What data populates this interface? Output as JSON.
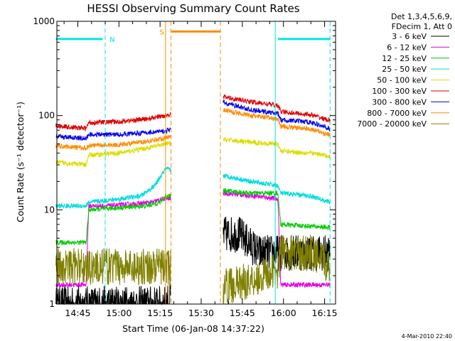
{
  "chart_data": {
    "type": "line",
    "title": "HESSI Observing Summary Count Rates",
    "xlabel": "Start Time (06-Jan-08 14:37:22)",
    "ylabel": "Count Rate (s⁻¹ detector⁻¹)",
    "yscale": "log",
    "ylim": [
      1,
      1000
    ],
    "xlim": [
      "14:37:22",
      "16:19:00"
    ],
    "x_ticks": [
      "14:45",
      "15:00",
      "15:15",
      "15:30",
      "15:45",
      "16:00",
      "16:15"
    ],
    "y_ticks": [
      "1",
      "10",
      "100",
      "1000"
    ],
    "legend_header": [
      "Det 1,3,4,5,6,9,",
      "FDecim 1, Att 0"
    ],
    "legend_position": "top-right, outside plot",
    "footer_date": "4-Mar-2010 22:40",
    "gaps": [
      [
        "15:19",
        "15:38"
      ]
    ],
    "markers": [
      {
        "label": "N",
        "color": "#00e5e5",
        "type": "night",
        "segments": [
          [
            "14:37",
            "14:54"
          ],
          [
            "15:58",
            "16:17"
          ]
        ],
        "boundaries": [
          "14:55",
          "15:57",
          "16:17"
        ],
        "level": 650
      },
      {
        "label": "S",
        "color": "#ff8c00",
        "type": "SAA",
        "segments": [
          [
            "15:19",
            "15:37"
          ]
        ],
        "boundaries": [
          "15:17",
          "15:19",
          "15:37"
        ],
        "level": 780
      }
    ],
    "series": [
      {
        "name": "3 - 6 keV",
        "color": "#000000",
        "points": [
          [
            "14:37",
            1.0
          ],
          [
            "15:17",
            1.0
          ],
          [
            "15:38",
            5.5
          ],
          [
            "15:44",
            5.5
          ],
          [
            "15:51",
            3.5
          ],
          [
            "15:58",
            3.5
          ],
          [
            "16:17",
            3.5
          ]
        ]
      },
      {
        "name": "6 - 12 keV",
        "color": "#e000e0",
        "points": [
          [
            "14:37",
            1.6
          ],
          [
            "14:45",
            1.6
          ],
          [
            "14:48",
            1.6
          ],
          [
            "14:49",
            11
          ],
          [
            "14:55",
            11
          ],
          [
            "15:05",
            11.5
          ],
          [
            "15:12",
            12
          ],
          [
            "15:16",
            13
          ],
          [
            "15:17",
            13
          ],
          [
            "15:38",
            15
          ],
          [
            "15:50",
            14
          ],
          [
            "15:58",
            13
          ],
          [
            "15:59",
            1.6
          ],
          [
            "16:17",
            1.6
          ]
        ]
      },
      {
        "name": "12 - 25 keV",
        "color": "#00cc00",
        "points": [
          [
            "14:37",
            4.5
          ],
          [
            "14:48",
            4.5
          ],
          [
            "14:49",
            10
          ],
          [
            "15:00",
            10.5
          ],
          [
            "15:10",
            11
          ],
          [
            "15:15",
            12
          ],
          [
            "15:17",
            14
          ],
          [
            "15:38",
            16
          ],
          [
            "15:48",
            15
          ],
          [
            "15:58",
            15
          ],
          [
            "15:59",
            7
          ],
          [
            "16:17",
            6.5
          ]
        ]
      },
      {
        "name": "25 - 50 keV",
        "color": "#00dddd",
        "points": [
          [
            "14:37",
            11
          ],
          [
            "14:48",
            11
          ],
          [
            "14:49",
            12
          ],
          [
            "15:00",
            13
          ],
          [
            "15:08",
            14
          ],
          [
            "15:13",
            18
          ],
          [
            "15:17",
            27
          ],
          [
            "15:38",
            23
          ],
          [
            "15:48",
            20
          ],
          [
            "15:58",
            18
          ],
          [
            "15:59",
            15
          ],
          [
            "16:10",
            14
          ],
          [
            "16:17",
            12
          ]
        ]
      },
      {
        "name": "50 - 100 keV",
        "color": "#dddd00",
        "points": [
          [
            "14:37",
            32
          ],
          [
            "14:48",
            30
          ],
          [
            "14:49",
            38
          ],
          [
            "15:00",
            40
          ],
          [
            "15:10",
            45
          ],
          [
            "15:17",
            50
          ],
          [
            "15:38",
            56
          ],
          [
            "15:48",
            52
          ],
          [
            "15:58",
            50
          ],
          [
            "15:59",
            42
          ],
          [
            "16:10",
            40
          ],
          [
            "16:17",
            37
          ]
        ]
      },
      {
        "name": "100 - 300 keV",
        "color": "#e00000",
        "points": [
          [
            "14:37",
            78
          ],
          [
            "14:48",
            73
          ],
          [
            "14:49",
            84
          ],
          [
            "15:00",
            86
          ],
          [
            "15:10",
            92
          ],
          [
            "15:17",
            100
          ],
          [
            "15:38",
            158
          ],
          [
            "15:48",
            140
          ],
          [
            "15:58",
            128
          ],
          [
            "15:59",
            110
          ],
          [
            "16:10",
            102
          ],
          [
            "16:17",
            88
          ]
        ]
      },
      {
        "name": "300 - 800 keV",
        "color": "#0000ee",
        "points": [
          [
            "14:37",
            60
          ],
          [
            "14:48",
            57
          ],
          [
            "14:49",
            63
          ],
          [
            "15:00",
            63
          ],
          [
            "15:10",
            66
          ],
          [
            "15:17",
            68
          ],
          [
            "15:38",
            138
          ],
          [
            "15:48",
            115
          ],
          [
            "15:58",
            105
          ],
          [
            "15:59",
            90
          ],
          [
            "16:10",
            85
          ],
          [
            "16:17",
            72
          ]
        ]
      },
      {
        "name": "800 - 7000 keV",
        "color": "#ff8c00",
        "points": [
          [
            "14:37",
            48
          ],
          [
            "14:48",
            45
          ],
          [
            "14:49",
            48
          ],
          [
            "15:00",
            49
          ],
          [
            "15:10",
            53
          ],
          [
            "15:17",
            58
          ],
          [
            "15:38",
            115
          ],
          [
            "15:48",
            100
          ],
          [
            "15:58",
            92
          ],
          [
            "15:59",
            77
          ],
          [
            "16:10",
            72
          ],
          [
            "16:17",
            62
          ]
        ]
      },
      {
        "name": "7000 - 20000 keV",
        "color": "#808000",
        "points": [
          [
            "14:37",
            2.5
          ],
          [
            "15:17",
            2.5
          ],
          [
            "15:38",
            1.5
          ],
          [
            "15:48",
            1.8
          ],
          [
            "15:58",
            2.3
          ],
          [
            "15:59",
            3.5
          ],
          [
            "16:10",
            3.5
          ],
          [
            "16:17",
            2.5
          ]
        ]
      }
    ]
  }
}
